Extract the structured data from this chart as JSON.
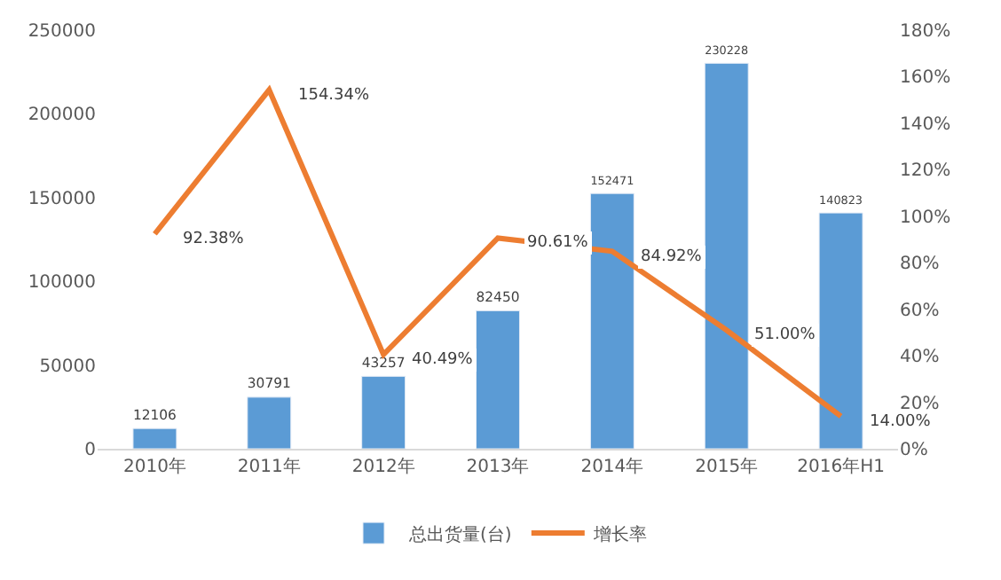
{
  "chart_data": {
    "type": "bar",
    "categories": [
      "2010年",
      "2011年",
      "2012年",
      "2013年",
      "2014年",
      "2015年",
      "2016年H1"
    ],
    "series": [
      {
        "name": "总出货量(台)",
        "color": "#5b9bd5",
        "values": [
          12106,
          30791,
          43257,
          82450,
          152471,
          230228,
          140823
        ],
        "value_labels": [
          "12106",
          "30791",
          "43257",
          "82450",
          "152471",
          "230228",
          "140823"
        ]
      },
      {
        "name": "增长率",
        "type": "line",
        "axis": "y2",
        "color": "#ed7d31",
        "values": [
          92.38,
          154.34,
          40.49,
          90.61,
          84.92,
          51.0,
          14.0
        ],
        "value_labels": [
          "92.38%",
          "154.34%",
          "40.49%",
          "90.61%",
          "84.92%",
          "51.00%",
          "14.00%"
        ]
      }
    ],
    "ylim": [
      0,
      250000
    ],
    "yticks": [
      0,
      50000,
      100000,
      150000,
      200000,
      250000
    ],
    "y2lim": [
      0,
      180
    ],
    "y2ticks": [
      {
        "value": 0,
        "label": "0%"
      },
      {
        "value": 20,
        "label": "20%"
      },
      {
        "value": 40,
        "label": "40%"
      },
      {
        "value": 60,
        "label": "60%"
      },
      {
        "value": 80,
        "label": "80%"
      },
      {
        "value": 100,
        "label": "100%"
      },
      {
        "value": 120,
        "label": "120%"
      },
      {
        "value": 140,
        "label": "140%"
      },
      {
        "value": 160,
        "label": "160%"
      },
      {
        "value": 180,
        "label": "180%"
      }
    ],
    "legend": "bottom",
    "marker": "none",
    "line_style": "solid"
  }
}
